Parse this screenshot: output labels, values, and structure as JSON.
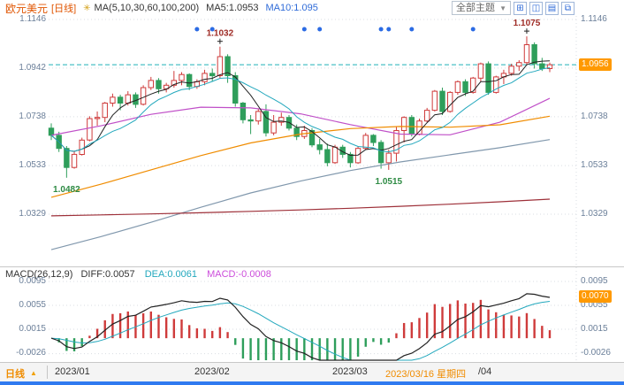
{
  "header": {
    "symbol": "欧元美元",
    "period_tag": "[日线]",
    "settings_icon": "✳",
    "ma_settings_label": "MA(5,10,30,60,100,200)",
    "ma5_label": "MA5:1.0953",
    "ma10_label": "MA10:1.095",
    "theme_selector": "全部主题",
    "theme_caret": "▼",
    "toolbar_icons": [
      "⊞",
      "◫",
      "▤",
      "⧉"
    ]
  },
  "price_axis": {
    "labels": [
      "1.1146",
      "1.0942",
      "1.0738",
      "1.0533",
      "1.0329"
    ],
    "values": [
      1.1146,
      1.0942,
      1.0738,
      1.0533,
      1.0329
    ],
    "current_price_label": "1.0956"
  },
  "macd_panel": {
    "legend_params": "MACD(26,12,9)",
    "diff_label": "DIFF:0.0057",
    "dea_label": "DEA:0.0061",
    "macd_label": "MACD:-0.0008",
    "axis_labels": [
      "0.0095",
      "0.0055",
      "0.0015",
      "-0.0026"
    ],
    "axis_values": [
      0.0095,
      0.0055,
      0.0015,
      -0.0026
    ],
    "badge_label": "0.0070",
    "badge_value": 0.007
  },
  "bottom_bar": {
    "period_tab": "日线",
    "period_caret": "▲",
    "ticks": [
      "2023/01",
      "2023/02",
      "2023/03"
    ],
    "crosshair_date": "2023/03/16 星期四",
    "partial_tick": "/04"
  },
  "chart_data": {
    "type": "candlestick",
    "symbol": "欧元美元 EUR/USD",
    "period": "daily",
    "x_range": [
      "2023/01",
      "2023/04"
    ],
    "price_gridlines": [
      1.1146,
      1.0942,
      1.0738,
      1.0533,
      1.0329
    ],
    "current_price": 1.0956,
    "candles": [
      [
        1.069,
        1.071,
        1.064,
        1.066
      ],
      [
        1.066,
        1.0675,
        1.059,
        1.0605
      ],
      [
        1.0605,
        1.0615,
        1.0482,
        1.0525
      ],
      [
        1.0525,
        1.0595,
        1.052,
        1.058
      ],
      [
        1.058,
        1.065,
        1.0575,
        1.064
      ],
      [
        1.064,
        1.074,
        1.0635,
        1.073
      ],
      [
        1.073,
        1.076,
        1.07,
        1.0735
      ],
      [
        1.0735,
        1.08,
        1.0715,
        1.0795
      ],
      [
        1.0795,
        1.0835,
        1.078,
        1.082
      ],
      [
        1.082,
        1.083,
        1.0765,
        1.0795
      ],
      [
        1.0795,
        1.0845,
        1.0785,
        1.083
      ],
      [
        1.083,
        1.084,
        1.0775,
        1.079
      ],
      [
        1.079,
        1.087,
        1.0785,
        1.086
      ],
      [
        1.086,
        1.0905,
        1.085,
        1.089
      ],
      [
        1.089,
        1.09,
        1.0835,
        1.0855
      ],
      [
        1.0855,
        1.088,
        1.084,
        1.087
      ],
      [
        1.087,
        1.093,
        1.086,
        1.089
      ],
      [
        1.089,
        1.0925,
        1.087,
        1.0915
      ],
      [
        1.0915,
        1.092,
        1.085,
        1.0865
      ],
      [
        1.0865,
        1.0895,
        1.0855,
        1.0885
      ],
      [
        1.0885,
        1.0935,
        1.087,
        1.092
      ],
      [
        1.092,
        1.094,
        1.0885,
        1.091
      ],
      [
        1.091,
        1.1032,
        1.09,
        1.099
      ],
      [
        1.099,
        1.1,
        1.088,
        1.091
      ],
      [
        1.091,
        1.0925,
        1.078,
        1.0795
      ],
      [
        1.0795,
        1.08,
        1.071,
        1.0725
      ],
      [
        1.0725,
        1.0745,
        1.0665,
        1.072
      ],
      [
        1.072,
        1.077,
        1.0705,
        1.076
      ],
      [
        1.076,
        1.079,
        1.0655,
        1.067
      ],
      [
        1.067,
        1.0745,
        1.066,
        1.0715
      ],
      [
        1.0715,
        1.0755,
        1.07,
        1.0735
      ],
      [
        1.0735,
        1.0745,
        1.068,
        1.069
      ],
      [
        1.069,
        1.0705,
        1.064,
        1.0655
      ],
      [
        1.0655,
        1.07,
        1.0645,
        1.068
      ],
      [
        1.068,
        1.069,
        1.061,
        1.062
      ],
      [
        1.062,
        1.0645,
        1.058,
        1.06
      ],
      [
        1.06,
        1.0625,
        1.053,
        1.0545
      ],
      [
        1.0545,
        1.062,
        1.054,
        1.061
      ],
      [
        1.061,
        1.062,
        1.0565,
        1.058
      ],
      [
        1.058,
        1.059,
        1.0525,
        1.0545
      ],
      [
        1.0545,
        1.0615,
        1.054,
        1.0605
      ],
      [
        1.0605,
        1.067,
        1.06,
        1.066
      ],
      [
        1.066,
        1.0665,
        1.0615,
        1.063
      ],
      [
        1.063,
        1.064,
        1.052,
        1.0545
      ],
      [
        1.0545,
        1.06,
        1.0515,
        1.0585
      ],
      [
        1.0585,
        1.0695,
        1.055,
        1.068
      ],
      [
        1.068,
        1.074,
        1.063,
        1.0735
      ],
      [
        1.0735,
        1.0745,
        1.0655,
        1.0665
      ],
      [
        1.0665,
        1.073,
        1.066,
        1.072
      ],
      [
        1.072,
        1.0775,
        1.0715,
        1.0765
      ],
      [
        1.0765,
        1.085,
        1.076,
        1.0845
      ],
      [
        1.0845,
        1.086,
        1.0745,
        1.076
      ],
      [
        1.076,
        1.0845,
        1.0755,
        1.084
      ],
      [
        1.084,
        1.089,
        1.083,
        1.0885
      ],
      [
        1.0885,
        1.0895,
        1.0825,
        1.084
      ],
      [
        1.084,
        1.0905,
        1.0835,
        1.09
      ],
      [
        1.09,
        1.0965,
        1.0885,
        1.096
      ],
      [
        1.096,
        1.097,
        1.083,
        1.084
      ],
      [
        1.084,
        1.091,
        1.0835,
        1.0905
      ],
      [
        1.0905,
        1.0935,
        1.0875,
        1.092
      ],
      [
        1.092,
        1.096,
        1.091,
        1.095
      ],
      [
        1.095,
        1.0975,
        1.093,
        1.0965
      ],
      [
        1.0965,
        1.1075,
        1.0955,
        1.104
      ],
      [
        1.104,
        1.105,
        1.094,
        1.096
      ],
      [
        1.096,
        1.0985,
        1.093,
        1.094
      ],
      [
        1.094,
        1.0965,
        1.0925,
        1.0956
      ]
    ],
    "event_dot_indices": [
      19,
      21,
      33,
      35,
      43,
      44,
      47,
      55
    ],
    "annotations": [
      {
        "index": 2,
        "value": 1.0482,
        "label": "1.0482",
        "color": "#2e8b44",
        "side": "below"
      },
      {
        "index": 22,
        "value": 1.1032,
        "label": "1.1032",
        "color": "#9e2b25",
        "side": "above",
        "marker": "cross"
      },
      {
        "index": 44,
        "value": 1.0515,
        "label": "1.0515",
        "color": "#2e8b44",
        "side": "below"
      },
      {
        "index": 62,
        "value": 1.1075,
        "label": "1.1075",
        "color": "#9e2b25",
        "side": "above",
        "marker": "cross"
      }
    ],
    "ma_overlays": [
      {
        "name": "MA30",
        "color": "#c050c8",
        "points": [
          1.066,
          1.07,
          1.0748,
          1.0778,
          1.0775,
          1.075,
          1.0705,
          1.0665,
          1.0662,
          1.0715,
          1.0815
        ]
      },
      {
        "name": "MA60",
        "color": "#f08c00",
        "points": [
          1.04,
          1.0455,
          1.0515,
          1.0575,
          1.0628,
          1.0665,
          1.0688,
          1.0697,
          1.0694,
          1.0704,
          1.074
        ]
      },
      {
        "name": "MA100",
        "color": "#8198ad",
        "points": [
          1.018,
          1.0235,
          1.0295,
          1.0358,
          1.0418,
          1.0468,
          1.0512,
          1.0548,
          1.0578,
          1.0608,
          1.0642
        ]
      },
      {
        "name": "MA200",
        "color": "#9e3039",
        "points": [
          1.0322,
          1.0326,
          1.033,
          1.0335,
          1.0341,
          1.0347,
          1.0354,
          1.0362,
          1.0371,
          1.0381,
          1.0392
        ]
      }
    ],
    "style": {
      "up_color": "#cf3b3b",
      "down_color": "#2e9e5b",
      "ma5_color": "#222222",
      "ma10_color": "#23a8bd",
      "event_dot_color": "#2b6be4",
      "current_line_color": "#1fb0b8",
      "badge_color": "#ff9900"
    },
    "macd": {
      "fast": 12,
      "slow": 26,
      "signal": 9,
      "diff": 0.0057,
      "dea": 0.0061,
      "macd": -0.0008,
      "hist_up_color": "#cf3b3b",
      "hist_down_color": "#2e9e5b",
      "diff_color": "#222222",
      "dea_color": "#23a8bd"
    }
  }
}
